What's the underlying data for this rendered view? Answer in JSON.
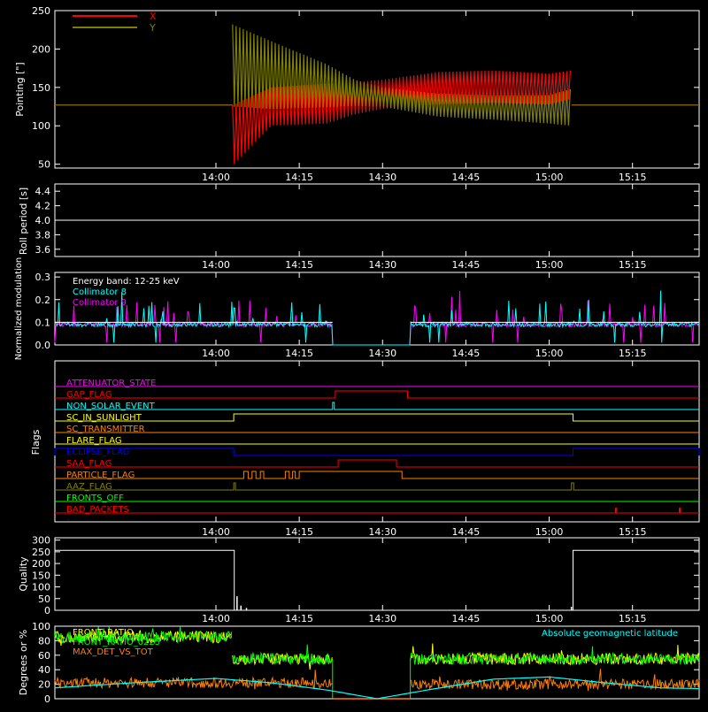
{
  "chart_data": [
    {
      "type": "line",
      "ylabel": "Pointing [\"]",
      "ylim": [
        45,
        250
      ],
      "yticks": [
        50,
        100,
        150,
        200,
        250
      ],
      "xticks": [
        "14:00",
        "14:15",
        "14:30",
        "14:45",
        "15:00",
        "15:15"
      ],
      "xlim_minutes": [
        -29,
        87
      ],
      "legend": "top-left",
      "series": [
        {
          "name": "X",
          "color": "#ff0000",
          "baseline": 127,
          "active_start": "14:03",
          "active_end": "15:04",
          "envelope_upper": [
            [
              3,
              127
            ],
            [
              10,
              150
            ],
            [
              20,
              155
            ],
            [
              25,
              157
            ],
            [
              30,
              160
            ],
            [
              40,
              170
            ],
            [
              50,
              172
            ],
            [
              60,
              168
            ],
            [
              64,
              172
            ]
          ],
          "envelope_lower": [
            [
              3,
              48
            ],
            [
              10,
              100
            ],
            [
              20,
              103
            ],
            [
              25,
              115
            ],
            [
              30,
              122
            ],
            [
              40,
              128
            ],
            [
              50,
              130
            ],
            [
              60,
              128
            ],
            [
              64,
              135
            ]
          ]
        },
        {
          "name": "Y",
          "color": "#808000",
          "baseline": 127,
          "active_start": "14:03",
          "active_end": "15:04",
          "envelope_upper": [
            [
              3,
              232
            ],
            [
              10,
              210
            ],
            [
              20,
              180
            ],
            [
              25,
              160
            ],
            [
              30,
              150
            ],
            [
              40,
              142
            ],
            [
              50,
              140
            ],
            [
              60,
              140
            ],
            [
              64,
              148
            ]
          ],
          "envelope_lower": [
            [
              3,
              125
            ],
            [
              10,
              122
            ],
            [
              20,
              124
            ],
            [
              25,
              126
            ],
            [
              30,
              125
            ],
            [
              40,
              112
            ],
            [
              50,
              108
            ],
            [
              60,
              103
            ],
            [
              64,
              100
            ]
          ]
        }
      ]
    },
    {
      "type": "line",
      "ylabel": "Roll period [s]",
      "ylim": [
        3.5,
        4.5
      ],
      "yticks": [
        "3.6",
        "3.8",
        "4.0",
        "4.2",
        "4.4"
      ],
      "xticks": [
        "14:00",
        "14:15",
        "14:30",
        "14:45",
        "15:00",
        "15:15"
      ],
      "series": [
        {
          "name": "",
          "color": "#ffffff",
          "value": 4.0
        }
      ]
    },
    {
      "type": "line",
      "ylabel": "Normalized modulation",
      "ylim": [
        0,
        0.32
      ],
      "yticks": [
        "0.0",
        "0.1",
        "0.2",
        "0.3"
      ],
      "xticks": [
        "14:00",
        "14:15",
        "14:30",
        "14:45",
        "15:00",
        "15:15"
      ],
      "annotations": [
        "Energy band: 12-25 keV",
        "Collimator 8",
        "Collimator 9"
      ],
      "series": [
        {
          "name": "Collimator 8",
          "color": "#00ffff",
          "base": 0.09,
          "gap": [
            "14:21",
            "14:35"
          ]
        },
        {
          "name": "Collimator 9",
          "color": "#ff00ff",
          "base": 0.09,
          "gap": [
            "14:21",
            "14:35"
          ]
        },
        {
          "name": "",
          "color": "#ffffff",
          "value": 0.1
        }
      ]
    },
    {
      "type": "line",
      "ylabel": "Flags",
      "flags": [
        {
          "label": "ATTENUATOR_STATE",
          "color": "#ff00ff",
          "high": []
        },
        {
          "label": "GAP_FLAG",
          "color": "#ff0000",
          "high": [
            [
              21.5,
              34.5
            ]
          ]
        },
        {
          "label": "NON_SOLAR_EVENT",
          "color": "#00ffff",
          "high": [
            [
              21,
              21.3
            ]
          ]
        },
        {
          "label": "SC_IN_SUNLIGHT",
          "color": "#ffff00",
          "high": [
            [
              3.2,
              64.3
            ]
          ]
        },
        {
          "label": "SC_TRANSMITTER",
          "color": "#ff8000",
          "high": []
        },
        {
          "label": "FLARE_FLAG",
          "color": "#ffff00",
          "high": []
        },
        {
          "label": "ECLIPSE_FLAG",
          "color": "#0000ff",
          "high": [
            [
              -29,
              3.2
            ],
            [
              64.3,
              87
            ]
          ]
        },
        {
          "label": "SAA_FLAG",
          "color": "#ff0000",
          "high": [
            [
              22,
              32.5
            ]
          ]
        },
        {
          "label": "PARTICLE_FLAG",
          "color": "#ff8000",
          "high": [
            [
              5,
              5.8
            ],
            [
              6.5,
              7.2
            ],
            [
              8,
              8.6
            ],
            [
              12.5,
              13.2
            ],
            [
              13.8,
              14.3
            ],
            [
              15,
              33.5
            ]
          ]
        },
        {
          "label": "AAZ_FLAG",
          "color": "#808000",
          "high": [
            [
              3.2,
              3.5
            ],
            [
              64,
              64.4
            ]
          ]
        },
        {
          "label": "FRONTS_OFF",
          "color": "#00ff00",
          "high": []
        },
        {
          "label": "BAD_PACKETS",
          "color": "#ff0000",
          "spikes": [
            72,
            83.5
          ]
        }
      ],
      "xticks": [
        "14:00",
        "14:15",
        "14:30",
        "14:45",
        "15:00",
        "15:15"
      ]
    },
    {
      "type": "line",
      "ylabel": "Quality",
      "ylim": [
        0,
        310
      ],
      "yticks": [
        "0",
        "50",
        "100",
        "150",
        "200",
        "250",
        "300"
      ],
      "xticks": [
        "14:00",
        "14:15",
        "14:30",
        "14:45",
        "15:00",
        "15:15"
      ],
      "series": [
        {
          "name": "",
          "color": "#ffffff",
          "steps": [
            [
              -29,
              256
            ],
            [
              3.3,
              256
            ],
            [
              3.3,
              0
            ],
            [
              64.3,
              0
            ],
            [
              64.3,
              256
            ],
            [
              87,
              256
            ]
          ],
          "spikes": [
            [
              3.8,
              60
            ],
            [
              4.5,
              20
            ],
            [
              5.5,
              10
            ],
            [
              64,
              15
            ]
          ]
        }
      ]
    },
    {
      "type": "line",
      "ylabel": "Degrees or %",
      "ylim": [
        0,
        100
      ],
      "yticks": [
        "0",
        "20",
        "40",
        "60",
        "80",
        "100"
      ],
      "xticks": [
        "14:00",
        "14:15",
        "14:30",
        "14:45",
        "15:00",
        "15:15"
      ],
      "legend_entries": [
        "FRONT_RATIO",
        "FRONT_RATIO_0225",
        "MAX_DET_VS_TOT"
      ],
      "annotation": "Absolute geomagnetic latitude",
      "series": [
        {
          "name": "FRONT_RATIO",
          "color": "#ffff00",
          "segments": [
            [
              -29,
              3,
              85
            ],
            [
              3,
              21,
              55
            ],
            [
              35,
              87,
              55
            ]
          ]
        },
        {
          "name": "FRONT_RATIO_0225",
          "color": "#00ff00",
          "segments": [
            [
              -29,
              3,
              85
            ],
            [
              3,
              21,
              55
            ],
            [
              35,
              87,
              55
            ]
          ]
        },
        {
          "name": "MAX_DET_VS_TOT",
          "color": "#ff8000",
          "segments": [
            [
              -29,
              21,
              22
            ],
            [
              35,
              87,
              20
            ]
          ]
        },
        {
          "name": "Absolute geomagnetic latitude",
          "color": "#00ffff",
          "points": [
            [
              -29,
              15
            ],
            [
              -15,
              22
            ],
            [
              0,
              28
            ],
            [
              10,
              22
            ],
            [
              20,
              12
            ],
            [
              29,
              0
            ],
            [
              38,
              12
            ],
            [
              50,
              27
            ],
            [
              60,
              30
            ],
            [
              70,
              22
            ],
            [
              80,
              15
            ],
            [
              87,
              14
            ]
          ]
        }
      ]
    }
  ]
}
